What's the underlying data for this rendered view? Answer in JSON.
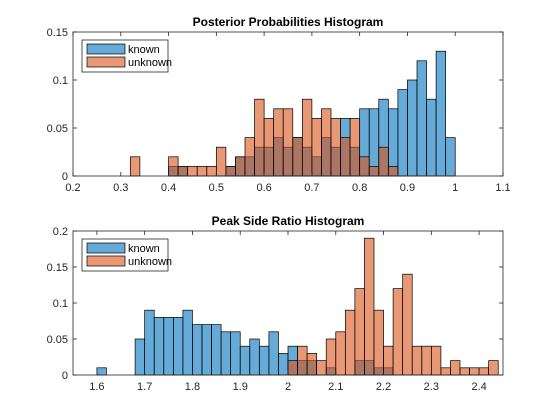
{
  "chart_data": [
    {
      "type": "bar",
      "title": "Posterior Probabilities Histogram",
      "bin_width": 0.02,
      "xlim": [
        0.2,
        1.1
      ],
      "ylim": [
        0,
        0.15
      ],
      "xticks": [
        0.2,
        0.3,
        0.4,
        0.5,
        0.6,
        0.7,
        0.8,
        0.9,
        1,
        1.1
      ],
      "xtick_labels": [
        "0.2",
        "0.3",
        "0.4",
        "0.5",
        "0.6",
        "0.7",
        "0.8",
        "0.9",
        "1",
        "1.1"
      ],
      "yticks": [
        0,
        0.05,
        0.1,
        0.15
      ],
      "ytick_labels": [
        "0",
        "0.05",
        "0.1",
        "0.15"
      ],
      "legend": {
        "placement": "top-left",
        "entries": [
          "known",
          "unknown"
        ]
      },
      "series": [
        {
          "name": "known",
          "color": "#0072BD",
          "bins": [
            {
              "x": 0.4,
              "y": 0.01
            },
            {
              "x": 0.42,
              "y": 0.01
            },
            {
              "x": 0.52,
              "y": 0.01
            },
            {
              "x": 0.54,
              "y": 0.02
            },
            {
              "x": 0.56,
              "y": 0.02
            },
            {
              "x": 0.58,
              "y": 0.03
            },
            {
              "x": 0.6,
              "y": 0.03
            },
            {
              "x": 0.62,
              "y": 0.04
            },
            {
              "x": 0.64,
              "y": 0.03
            },
            {
              "x": 0.66,
              "y": 0.04
            },
            {
              "x": 0.68,
              "y": 0.03
            },
            {
              "x": 0.7,
              "y": 0.02
            },
            {
              "x": 0.72,
              "y": 0.04
            },
            {
              "x": 0.74,
              "y": 0.03
            },
            {
              "x": 0.76,
              "y": 0.06
            },
            {
              "x": 0.78,
              "y": 0.03
            },
            {
              "x": 0.8,
              "y": 0.07
            },
            {
              "x": 0.82,
              "y": 0.07
            },
            {
              "x": 0.84,
              "y": 0.08
            },
            {
              "x": 0.86,
              "y": 0.07
            },
            {
              "x": 0.88,
              "y": 0.09
            },
            {
              "x": 0.9,
              "y": 0.1
            },
            {
              "x": 0.92,
              "y": 0.12
            },
            {
              "x": 0.94,
              "y": 0.08
            },
            {
              "x": 0.96,
              "y": 0.13
            },
            {
              "x": 0.98,
              "y": 0.04
            }
          ]
        },
        {
          "name": "unknown",
          "color": "#D95319",
          "bins": [
            {
              "x": 0.32,
              "y": 0.02
            },
            {
              "x": 0.4,
              "y": 0.02
            },
            {
              "x": 0.42,
              "y": 0.01
            },
            {
              "x": 0.44,
              "y": 0.01
            },
            {
              "x": 0.46,
              "y": 0.01
            },
            {
              "x": 0.48,
              "y": 0.01
            },
            {
              "x": 0.5,
              "y": 0.03
            },
            {
              "x": 0.52,
              "y": 0.01
            },
            {
              "x": 0.54,
              "y": 0.02
            },
            {
              "x": 0.56,
              "y": 0.04
            },
            {
              "x": 0.58,
              "y": 0.08
            },
            {
              "x": 0.6,
              "y": 0.06
            },
            {
              "x": 0.62,
              "y": 0.07
            },
            {
              "x": 0.64,
              "y": 0.07
            },
            {
              "x": 0.66,
              "y": 0.04
            },
            {
              "x": 0.68,
              "y": 0.08
            },
            {
              "x": 0.7,
              "y": 0.06
            },
            {
              "x": 0.72,
              "y": 0.07
            },
            {
              "x": 0.74,
              "y": 0.06
            },
            {
              "x": 0.76,
              "y": 0.04
            },
            {
              "x": 0.78,
              "y": 0.06
            },
            {
              "x": 0.8,
              "y": 0.02
            },
            {
              "x": 0.82,
              "y": 0.01
            },
            {
              "x": 0.84,
              "y": 0.03
            },
            {
              "x": 0.86,
              "y": 0.01
            }
          ]
        }
      ]
    },
    {
      "type": "bar",
      "title": "Peak Side Ratio Histogram",
      "bin_width": 0.02,
      "xlim": [
        1.55,
        2.45
      ],
      "ylim": [
        0,
        0.2
      ],
      "xticks": [
        1.6,
        1.7,
        1.8,
        1.9,
        2,
        2.1,
        2.2,
        2.3,
        2.4
      ],
      "xtick_labels": [
        "1.6",
        "1.7",
        "1.8",
        "1.9",
        "2",
        "2.1",
        "2.2",
        "2.3",
        "2.4"
      ],
      "yticks": [
        0,
        0.05,
        0.1,
        0.15,
        0.2
      ],
      "ytick_labels": [
        "0",
        "0.05",
        "0.1",
        "0.15",
        "0.2"
      ],
      "legend": {
        "placement": "top-left",
        "entries": [
          "known",
          "unknown"
        ]
      },
      "series": [
        {
          "name": "known",
          "color": "#0072BD",
          "bins": [
            {
              "x": 1.6,
              "y": 0.01
            },
            {
              "x": 1.68,
              "y": 0.05
            },
            {
              "x": 1.7,
              "y": 0.09
            },
            {
              "x": 1.72,
              "y": 0.08
            },
            {
              "x": 1.74,
              "y": 0.08
            },
            {
              "x": 1.76,
              "y": 0.08
            },
            {
              "x": 1.78,
              "y": 0.09
            },
            {
              "x": 1.8,
              "y": 0.07
            },
            {
              "x": 1.82,
              "y": 0.07
            },
            {
              "x": 1.84,
              "y": 0.07
            },
            {
              "x": 1.86,
              "y": 0.06
            },
            {
              "x": 1.88,
              "y": 0.06
            },
            {
              "x": 1.9,
              "y": 0.04
            },
            {
              "x": 1.92,
              "y": 0.05
            },
            {
              "x": 1.94,
              "y": 0.04
            },
            {
              "x": 1.96,
              "y": 0.06
            },
            {
              "x": 1.98,
              "y": 0.03
            },
            {
              "x": 2.0,
              "y": 0.04
            },
            {
              "x": 2.02,
              "y": 0.02
            },
            {
              "x": 2.04,
              "y": 0.02
            },
            {
              "x": 2.08,
              "y": 0.01
            },
            {
              "x": 2.14,
              "y": 0.02
            },
            {
              "x": 2.16,
              "y": 0.02
            },
            {
              "x": 2.18,
              "y": 0.01
            },
            {
              "x": 2.2,
              "y": 0.01
            }
          ]
        },
        {
          "name": "unknown",
          "color": "#D95319",
          "bins": [
            {
              "x": 2.0,
              "y": 0.02
            },
            {
              "x": 2.02,
              "y": 0.04
            },
            {
              "x": 2.04,
              "y": 0.03
            },
            {
              "x": 2.06,
              "y": 0.02
            },
            {
              "x": 2.08,
              "y": 0.05
            },
            {
              "x": 2.1,
              "y": 0.06
            },
            {
              "x": 2.12,
              "y": 0.09
            },
            {
              "x": 2.14,
              "y": 0.12
            },
            {
              "x": 2.16,
              "y": 0.19
            },
            {
              "x": 2.18,
              "y": 0.09
            },
            {
              "x": 2.2,
              "y": 0.04
            },
            {
              "x": 2.22,
              "y": 0.12
            },
            {
              "x": 2.24,
              "y": 0.14
            },
            {
              "x": 2.26,
              "y": 0.04
            },
            {
              "x": 2.28,
              "y": 0.04
            },
            {
              "x": 2.3,
              "y": 0.04
            },
            {
              "x": 2.32,
              "y": 0.01
            },
            {
              "x": 2.34,
              "y": 0.02
            },
            {
              "x": 2.36,
              "y": 0.01
            },
            {
              "x": 2.38,
              "y": 0.01
            },
            {
              "x": 2.4,
              "y": 0.01
            },
            {
              "x": 2.42,
              "y": 0.02
            }
          ]
        }
      ]
    }
  ]
}
